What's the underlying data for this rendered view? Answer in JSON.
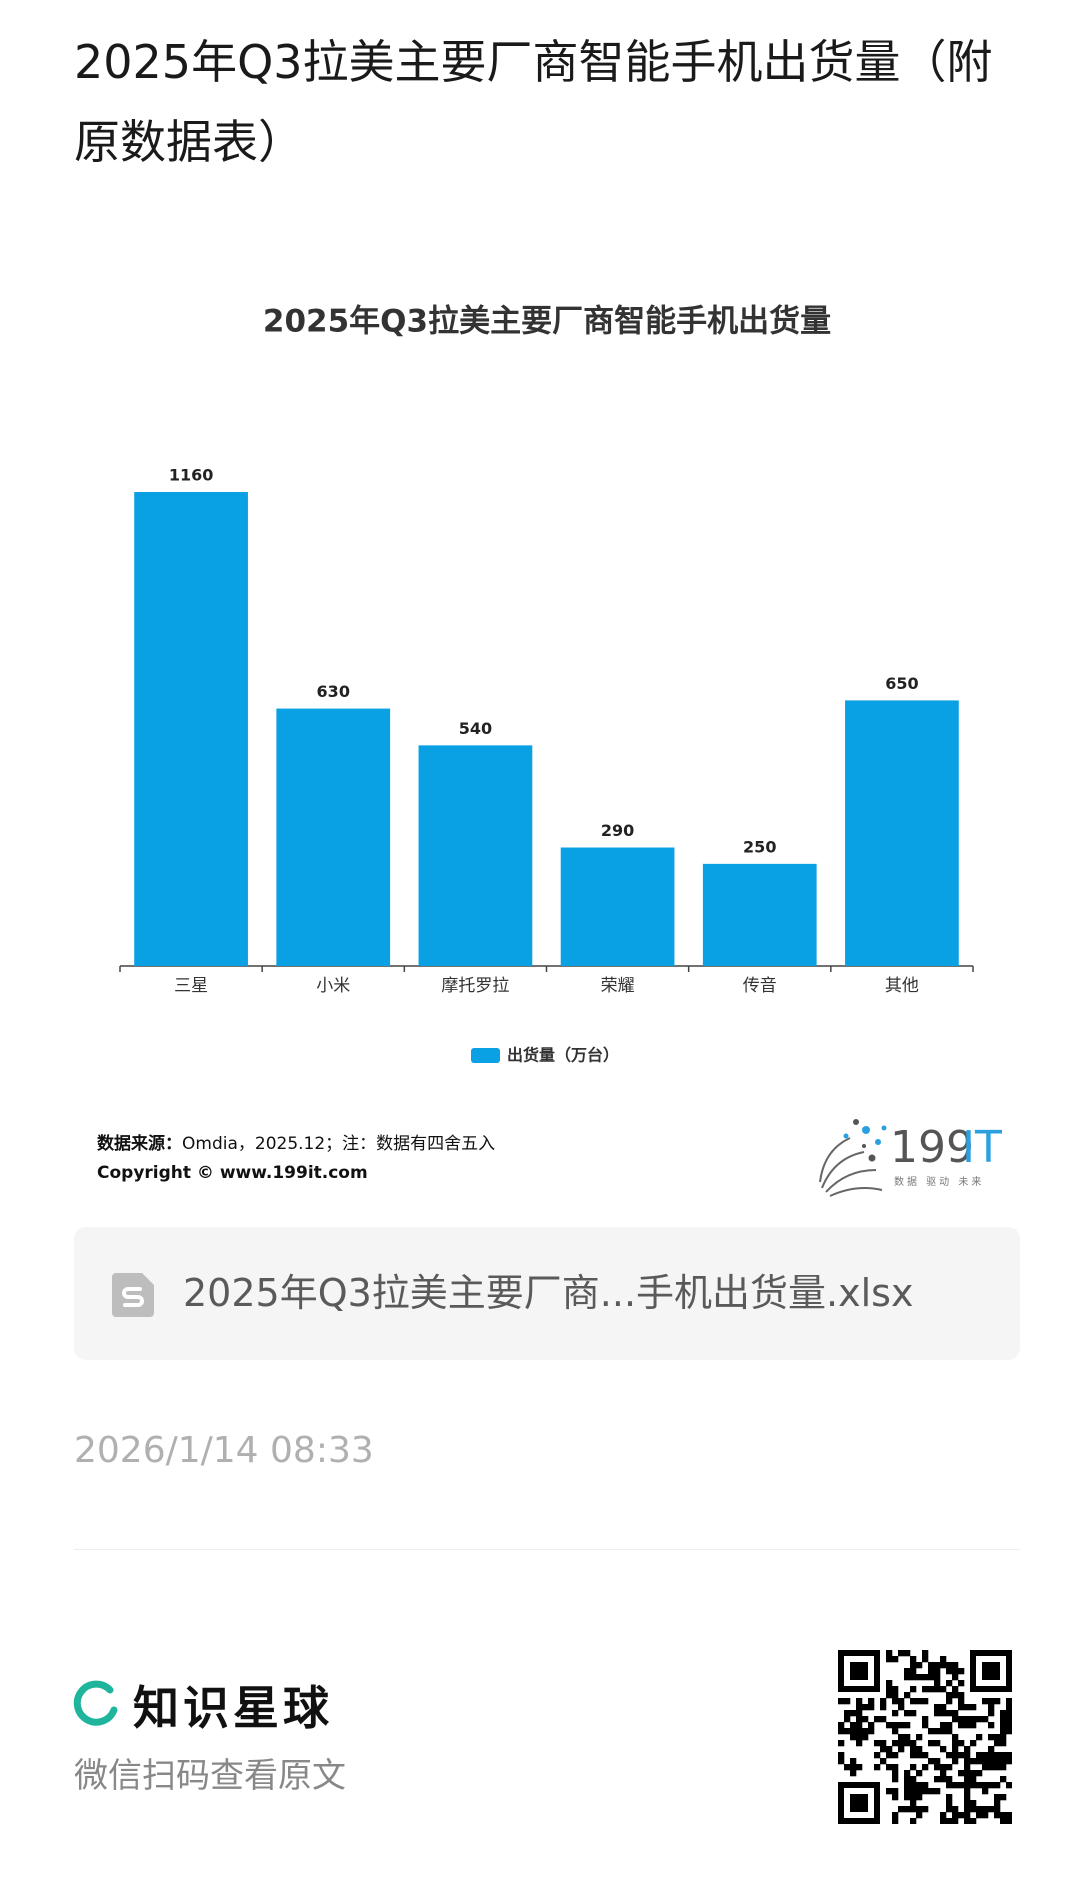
{
  "header": {
    "title": "2025年Q3拉美主要厂商智能手机出货量（附原数据表）"
  },
  "chart_data": {
    "type": "bar",
    "title": "2025年Q3拉美主要厂商智能手机出货量",
    "categories": [
      "三星",
      "小米",
      "摩托罗拉",
      "荣耀",
      "传音",
      "其他"
    ],
    "series": [
      {
        "name": "出货量（万台）",
        "color": "#0aa0e4",
        "values": [
          1160,
          630,
          540,
          290,
          250,
          650
        ]
      }
    ]
  },
  "source": {
    "label": "数据来源：",
    "text": "Omdia，2025.12；注：数据有四舍五入",
    "copyright": "Copyright © www.199it.com"
  },
  "logo": {
    "number": "199",
    "letters": "IT",
    "slogan": "数据 驱动 未来"
  },
  "attachment": {
    "filename": "2025年Q3拉美主要厂商...手机出货量.xlsx"
  },
  "timestamp": "2026/1/14 08:33",
  "footer": {
    "brand": "知识星球",
    "hint": "微信扫码查看原文"
  }
}
